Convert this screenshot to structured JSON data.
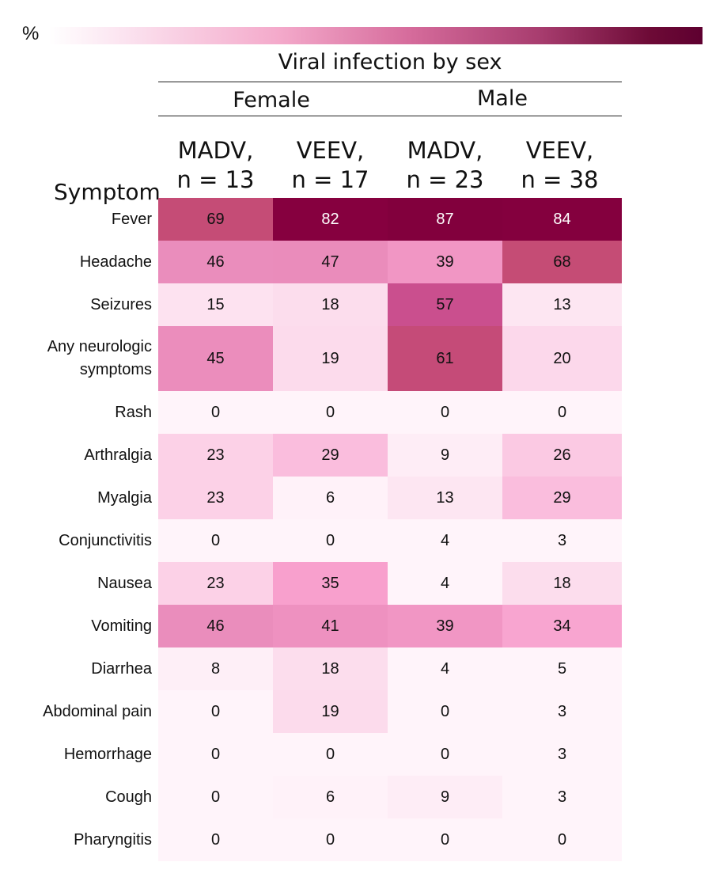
{
  "legend": {
    "label": "%",
    "low_color": "#ffffff",
    "high_color": "#5e0030"
  },
  "header": {
    "title": "Viral infection by sex",
    "groups": [
      "Female",
      "Male"
    ],
    "columns": [
      {
        "line1": "MADV,",
        "line2": "n = 13"
      },
      {
        "line1": "VEEV,",
        "line2": "n = 17"
      },
      {
        "line1": "MADV,",
        "line2": "n = 23"
      },
      {
        "line1": "VEEV,",
        "line2": "n = 38"
      }
    ],
    "row_header": "Symptom"
  },
  "chart_data": {
    "type": "heatmap",
    "title": "Viral infection by sex",
    "colorbar_label": "%",
    "groups": [
      "Female",
      "Female",
      "Male",
      "Male"
    ],
    "columns": [
      "MADV, n = 13",
      "VEEV, n = 17",
      "MADV, n = 23",
      "VEEV, n = 38"
    ],
    "rows": [
      {
        "label": [
          "Fever"
        ],
        "values": [
          69,
          82,
          87,
          84
        ]
      },
      {
        "label": [
          "Headache"
        ],
        "values": [
          46,
          47,
          39,
          68
        ]
      },
      {
        "label": [
          "Seizures"
        ],
        "values": [
          15,
          18,
          57,
          13
        ]
      },
      {
        "label": [
          "Any neurologic",
          "symptoms"
        ],
        "values": [
          45,
          19,
          61,
          20
        ]
      },
      {
        "label": [
          "Rash"
        ],
        "values": [
          0,
          0,
          0,
          0
        ]
      },
      {
        "label": [
          "Arthralgia"
        ],
        "values": [
          23,
          29,
          9,
          26
        ]
      },
      {
        "label": [
          "Myalgia"
        ],
        "values": [
          23,
          6,
          13,
          29
        ]
      },
      {
        "label": [
          "Conjunctivitis"
        ],
        "values": [
          0,
          0,
          4,
          3
        ]
      },
      {
        "label": [
          "Nausea"
        ],
        "values": [
          23,
          35,
          4,
          18
        ]
      },
      {
        "label": [
          "Vomiting"
        ],
        "values": [
          46,
          41,
          39,
          34
        ]
      },
      {
        "label": [
          "Diarrhea"
        ],
        "values": [
          8,
          18,
          4,
          5
        ]
      },
      {
        "label": [
          "Abdominal pain"
        ],
        "values": [
          0,
          19,
          0,
          3
        ]
      },
      {
        "label": [
          "Hemorrhage"
        ],
        "values": [
          0,
          0,
          0,
          3
        ]
      },
      {
        "label": [
          "Cough"
        ],
        "values": [
          0,
          6,
          9,
          3
        ]
      },
      {
        "label": [
          "Pharyngitis"
        ],
        "values": [
          0,
          0,
          0,
          0
        ]
      }
    ]
  }
}
